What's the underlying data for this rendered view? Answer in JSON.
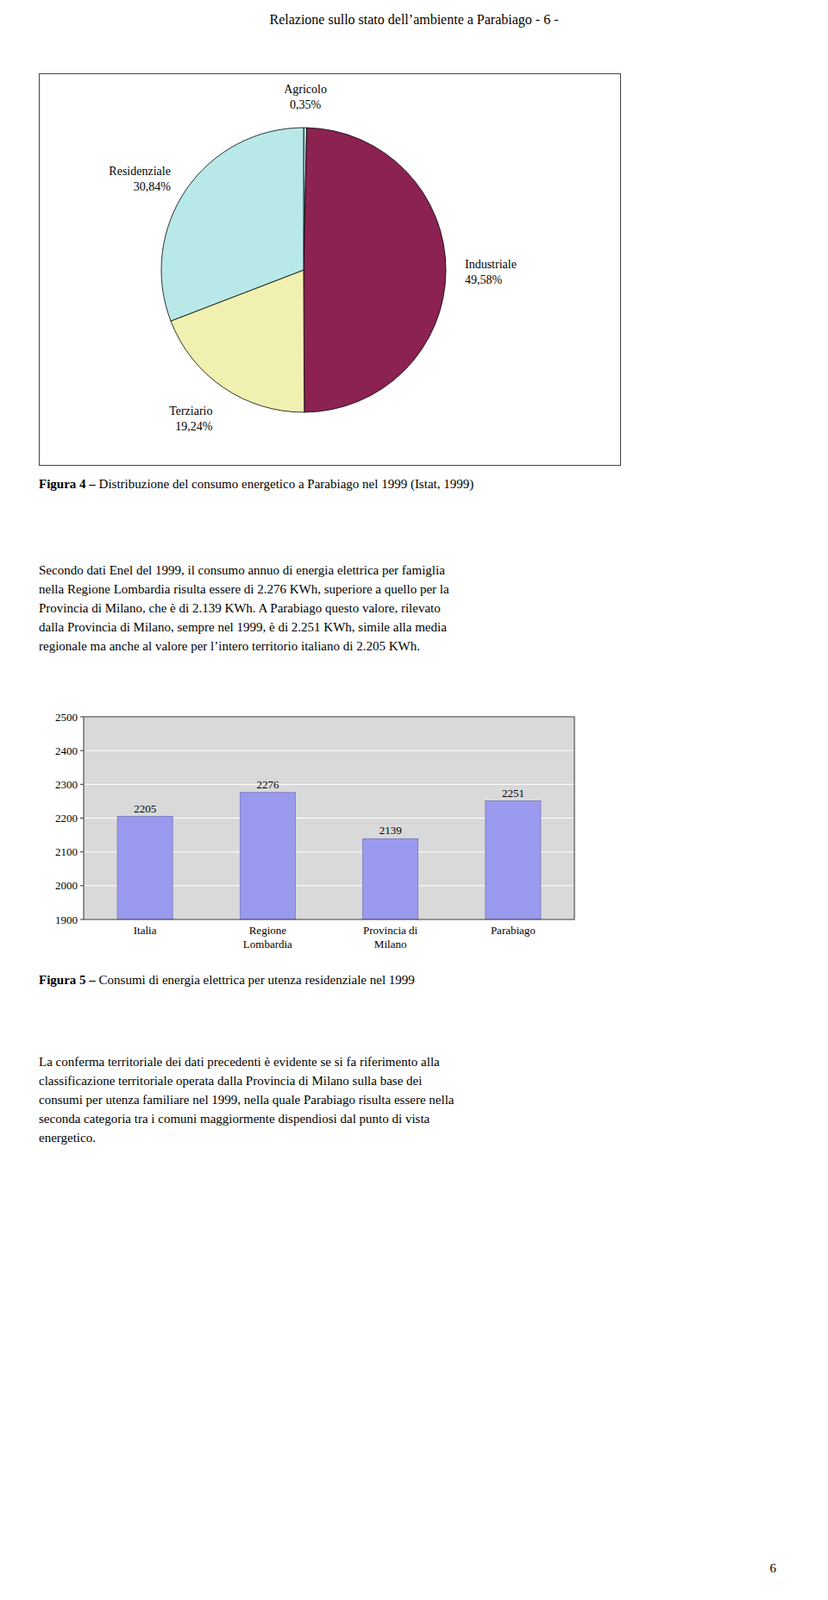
{
  "page_title": "Relazione sullo stato dell’ambiente a Parabiago - 6 -",
  "paragraphs": [
    [
      "Secondo dati Enel del 1999, il consumo annuo di energia elettrica per famiglia",
      "nella Regione Lombardia risulta essere di 2.276 KWh, superiore a quello per la",
      "Provincia di Milano, che è di 2.139 KWh. A Parabiago questo valore, rilevato",
      "dalla Provincia di Milano, sempre nel 1999, è di 2.251 KWh, simile alla media",
      "regionale ma anche al valore per l’intero territorio italiano di 2.205 KWh."
    ],
    [
      "La conferma territoriale dei dati precedenti è evidente se si fa riferimento alla",
      "classificazione territoriale operata dalla Provincia di Milano sulla base dei",
      "consumi per utenza familiare nel 1999, nella quale Parabiago risulta essere nella",
      "seconda categoria tra i comuni maggiormente dispendiosi dal punto di vista",
      "energetico."
    ]
  ],
  "page_number": "6",
  "chart_data": [
    {
      "type": "pie",
      "title": "Figura 4 – Distribuzione del consumo energetico a Parabiago nel 1999 (Istat, 1999)",
      "categories": [
        "Agricolo",
        "Industriale",
        "Terziario",
        "Residenziale"
      ],
      "values": [
        0.35,
        49.58,
        19.24,
        30.84
      ],
      "value_labels": [
        "0,35%",
        "49,58%",
        "19,24%",
        "30,84%"
      ],
      "colors": [
        "#b8e8e8",
        "#8B2252",
        "#f0f0b0",
        "#b8e8e8"
      ],
      "data_labels": true
    },
    {
      "type": "bar",
      "title": "Figura 5 – Consumi di energia elettrica per utenza residenziale nel 1999",
      "categories": [
        "Italia",
        "Regione\nLombardia",
        "Provincia di\nMilano",
        "Parabiago"
      ],
      "values": [
        2205,
        2276,
        2139,
        2251
      ],
      "color": "#9999ee",
      "ylim": [
        1900,
        2500
      ],
      "yticks": [
        1900,
        2000,
        2100,
        2200,
        2300,
        2400,
        2500
      ],
      "grid": true,
      "data_labels": true
    }
  ]
}
